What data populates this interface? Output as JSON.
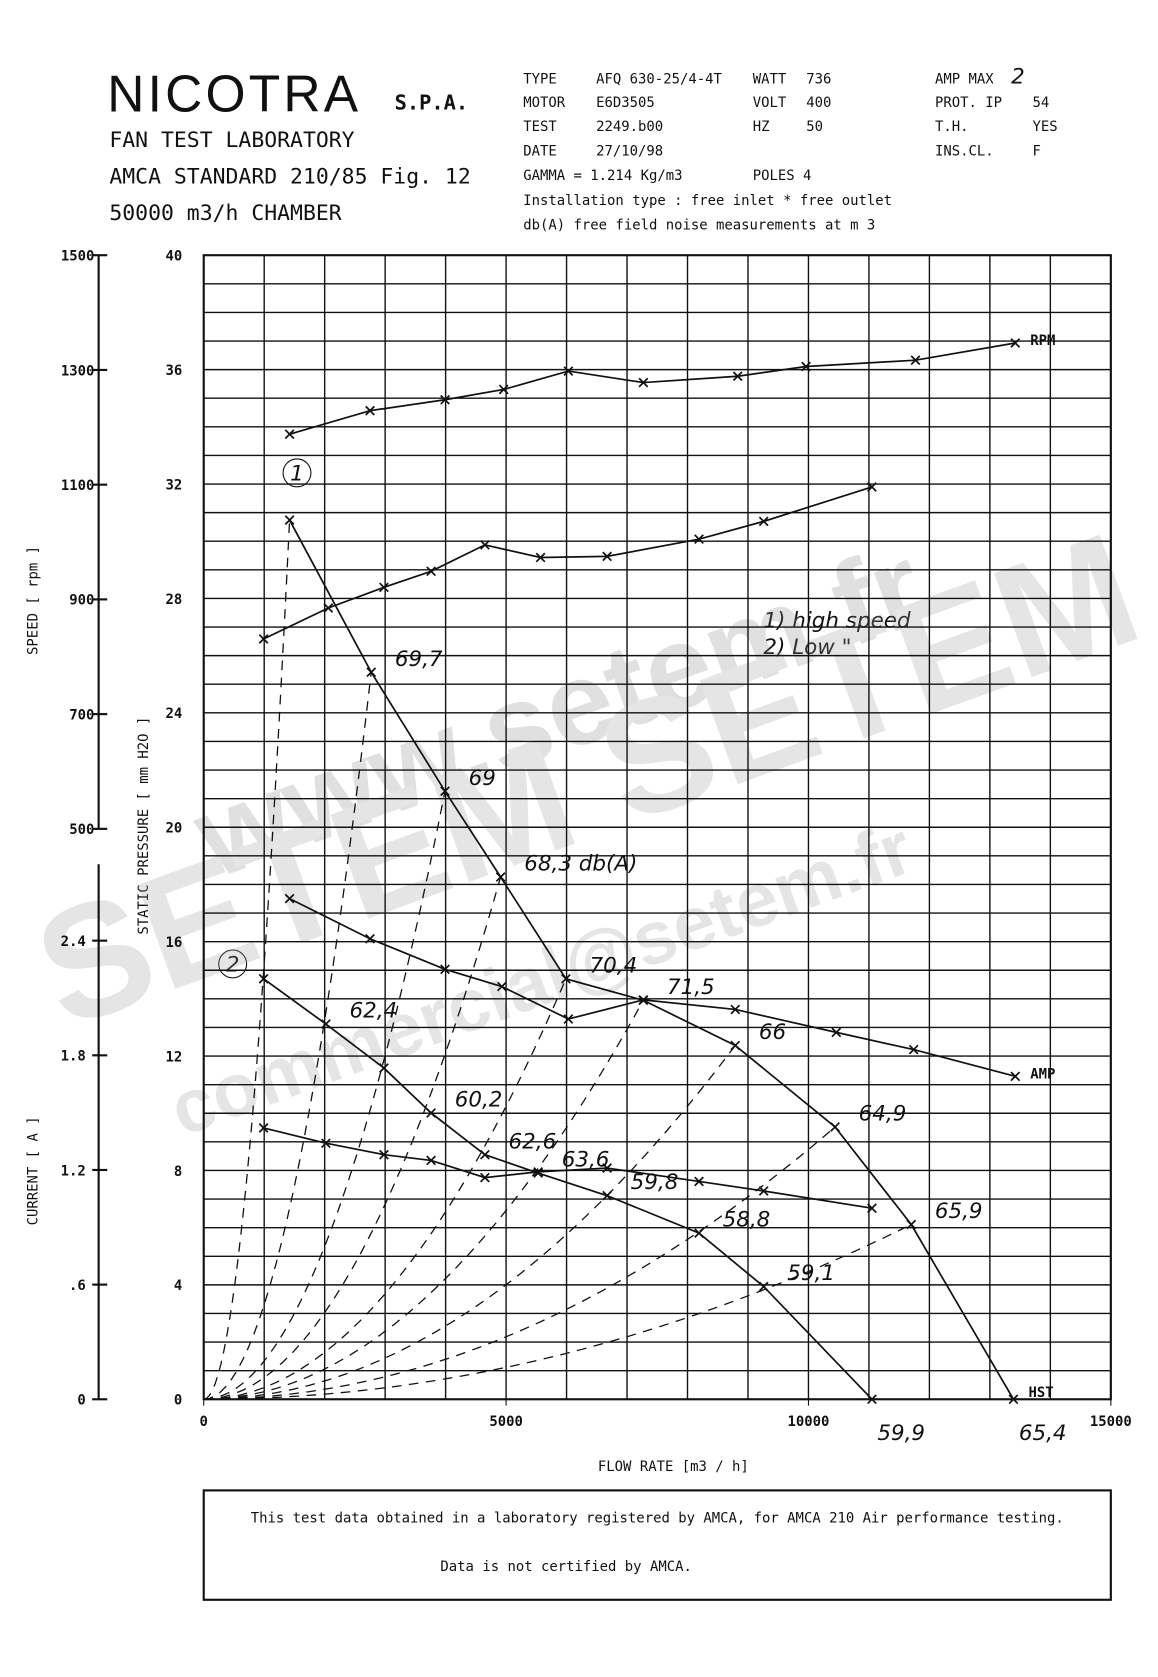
{
  "header": {
    "brand": "NICOTRA",
    "suffix": "S.P.A.",
    "lines": [
      "FAN TEST LABORATORY",
      "AMCA STANDARD 210/85 Fig. 12",
      "50000 m3/h  CHAMBER"
    ]
  },
  "specs": [
    [
      "TYPE",
      "AFQ 630-25/4-4T"
    ],
    [
      "MOTOR",
      "E6D3505"
    ],
    [
      "TEST",
      "2249.b00"
    ],
    [
      "DATE",
      "27/10/98"
    ],
    [
      "WATT",
      "736"
    ],
    [
      "VOLT",
      "400"
    ],
    [
      "HZ",
      "50"
    ],
    [
      "AMP MAX",
      "2"
    ],
    [
      "PROT.  IP",
      "54"
    ],
    [
      "T.H.",
      "YES"
    ],
    [
      "INS.CL.",
      "F"
    ]
  ],
  "spec_lines": [
    "GAMMA = 1.214 Kg/m3",
    "POLES 4",
    "Installation type : free inlet * free outlet",
    "db(A)  free field noise measurements at m  3"
  ],
  "watermark": [
    "www.setem.fr",
    "SETEM  SETEM",
    "commercial@setem.fr"
  ],
  "notes": [
    "1)  high speed",
    "2)  Low  \""
  ],
  "footer": [
    "This test data obtained in a laboratory registered by AMCA, for AMCA 210 Air performance testing.",
    "Data is not certified by AMCA."
  ],
  "chart_data": {
    "type": "line",
    "x_label": "FLOW RATE   [m3 / h]",
    "y_label": "STATIC PRESSURE   [ mm H2O ]",
    "y2_label": "SPEED   [ rpm ]",
    "y3_label": "CURRENT   [ A ]",
    "xlim": [
      0,
      15000
    ],
    "xticks": [
      0,
      5000,
      10000,
      15000
    ],
    "ylim": [
      0,
      40
    ],
    "yticks": [
      0,
      4,
      8,
      12,
      16,
      20,
      24,
      28,
      32,
      36,
      40
    ],
    "y2lim": [
      500,
      1500
    ],
    "y2ticks": [
      500,
      700,
      900,
      1100,
      1300,
      1500
    ],
    "y3lim": [
      0,
      2.8
    ],
    "y3ticks": [
      0,
      {
        "value": 0.6,
        "label": ".6"
      },
      1.2,
      1.8,
      2.4
    ],
    "xgrid": [
      0,
      1000,
      2000,
      3000,
      4000,
      5000,
      6000,
      7000,
      8000,
      9000,
      10000,
      11000,
      12000,
      13000,
      14000,
      15000
    ],
    "ygrid": [
      0,
      1,
      2,
      3,
      4,
      5,
      6,
      7,
      8,
      9,
      10,
      11,
      12,
      13,
      14,
      15,
      16,
      17,
      18,
      19,
      20,
      21,
      22,
      23,
      24,
      25,
      26,
      27,
      28,
      29,
      30,
      31,
      32,
      33,
      34,
      35,
      36,
      37,
      38,
      39,
      40
    ],
    "grid": true,
    "color": "#111111",
    "markers": [
      "1",
      "2"
    ],
    "series": [
      {
        "name": "RPM",
        "axis": "y2",
        "x": [
          1420,
          2750,
          3990,
          4960,
          6030,
          7270,
          8830,
          9960,
          11770,
          13420
        ],
        "values": [
          1188,
          1229,
          1248,
          1266,
          1298,
          1278,
          1289,
          1306,
          1317,
          1347
        ]
      },
      {
        "axis": "y2",
        "x": [
          990,
          2060,
          2980,
          3760,
          4650,
          5570,
          6670,
          8190,
          9260,
          11050
        ],
        "values": [
          831,
          885,
          921,
          949,
          995,
          973,
          975,
          1005,
          1036,
          1096
        ]
      },
      {
        "name": "HST",
        "axis": "y",
        "x": [
          1420,
          2770,
          3990,
          4910,
          5990,
          7270,
          8790,
          10440,
          11700,
          13390
        ],
        "values": [
          30.74,
          25.42,
          21.26,
          18.26,
          14.7,
          13.95,
          12.37,
          9.52,
          6.11,
          0
        ],
        "point_labels": [
          null,
          "69,7",
          "69",
          "68,3  db(A)",
          "70,4",
          "71,5",
          "66",
          "64,9",
          "65,9",
          "65,4"
        ]
      },
      {
        "axis": "y",
        "x": [
          990,
          2020,
          2980,
          3760,
          4650,
          5530,
          6670,
          8190,
          9260,
          11050
        ],
        "values": [
          14.7,
          13.12,
          11.58,
          10.01,
          8.55,
          7.91,
          7.12,
          5.81,
          3.94,
          0
        ],
        "point_labels": [
          null,
          "62,4",
          null,
          "60,2",
          "62,6",
          "63,6",
          "59,8",
          "58,8",
          "59,1",
          "59,9"
        ]
      },
      {
        "name": "AMP",
        "axis": "y3",
        "x": [
          1420,
          2750,
          3990,
          4930,
          6030,
          7270,
          8790,
          10460,
          11740,
          13420
        ],
        "values": [
          2.62,
          2.41,
          2.25,
          2.16,
          1.99,
          2.09,
          2.04,
          1.92,
          1.83,
          1.69
        ]
      },
      {
        "axis": "y3",
        "x": [
          990,
          2020,
          2980,
          3760,
          4650,
          5530,
          6670,
          8190,
          9260,
          11050
        ],
        "values": [
          1.42,
          1.34,
          1.28,
          1.25,
          1.16,
          1.19,
          1.21,
          1.14,
          1.09,
          1.0
        ]
      }
    ]
  }
}
